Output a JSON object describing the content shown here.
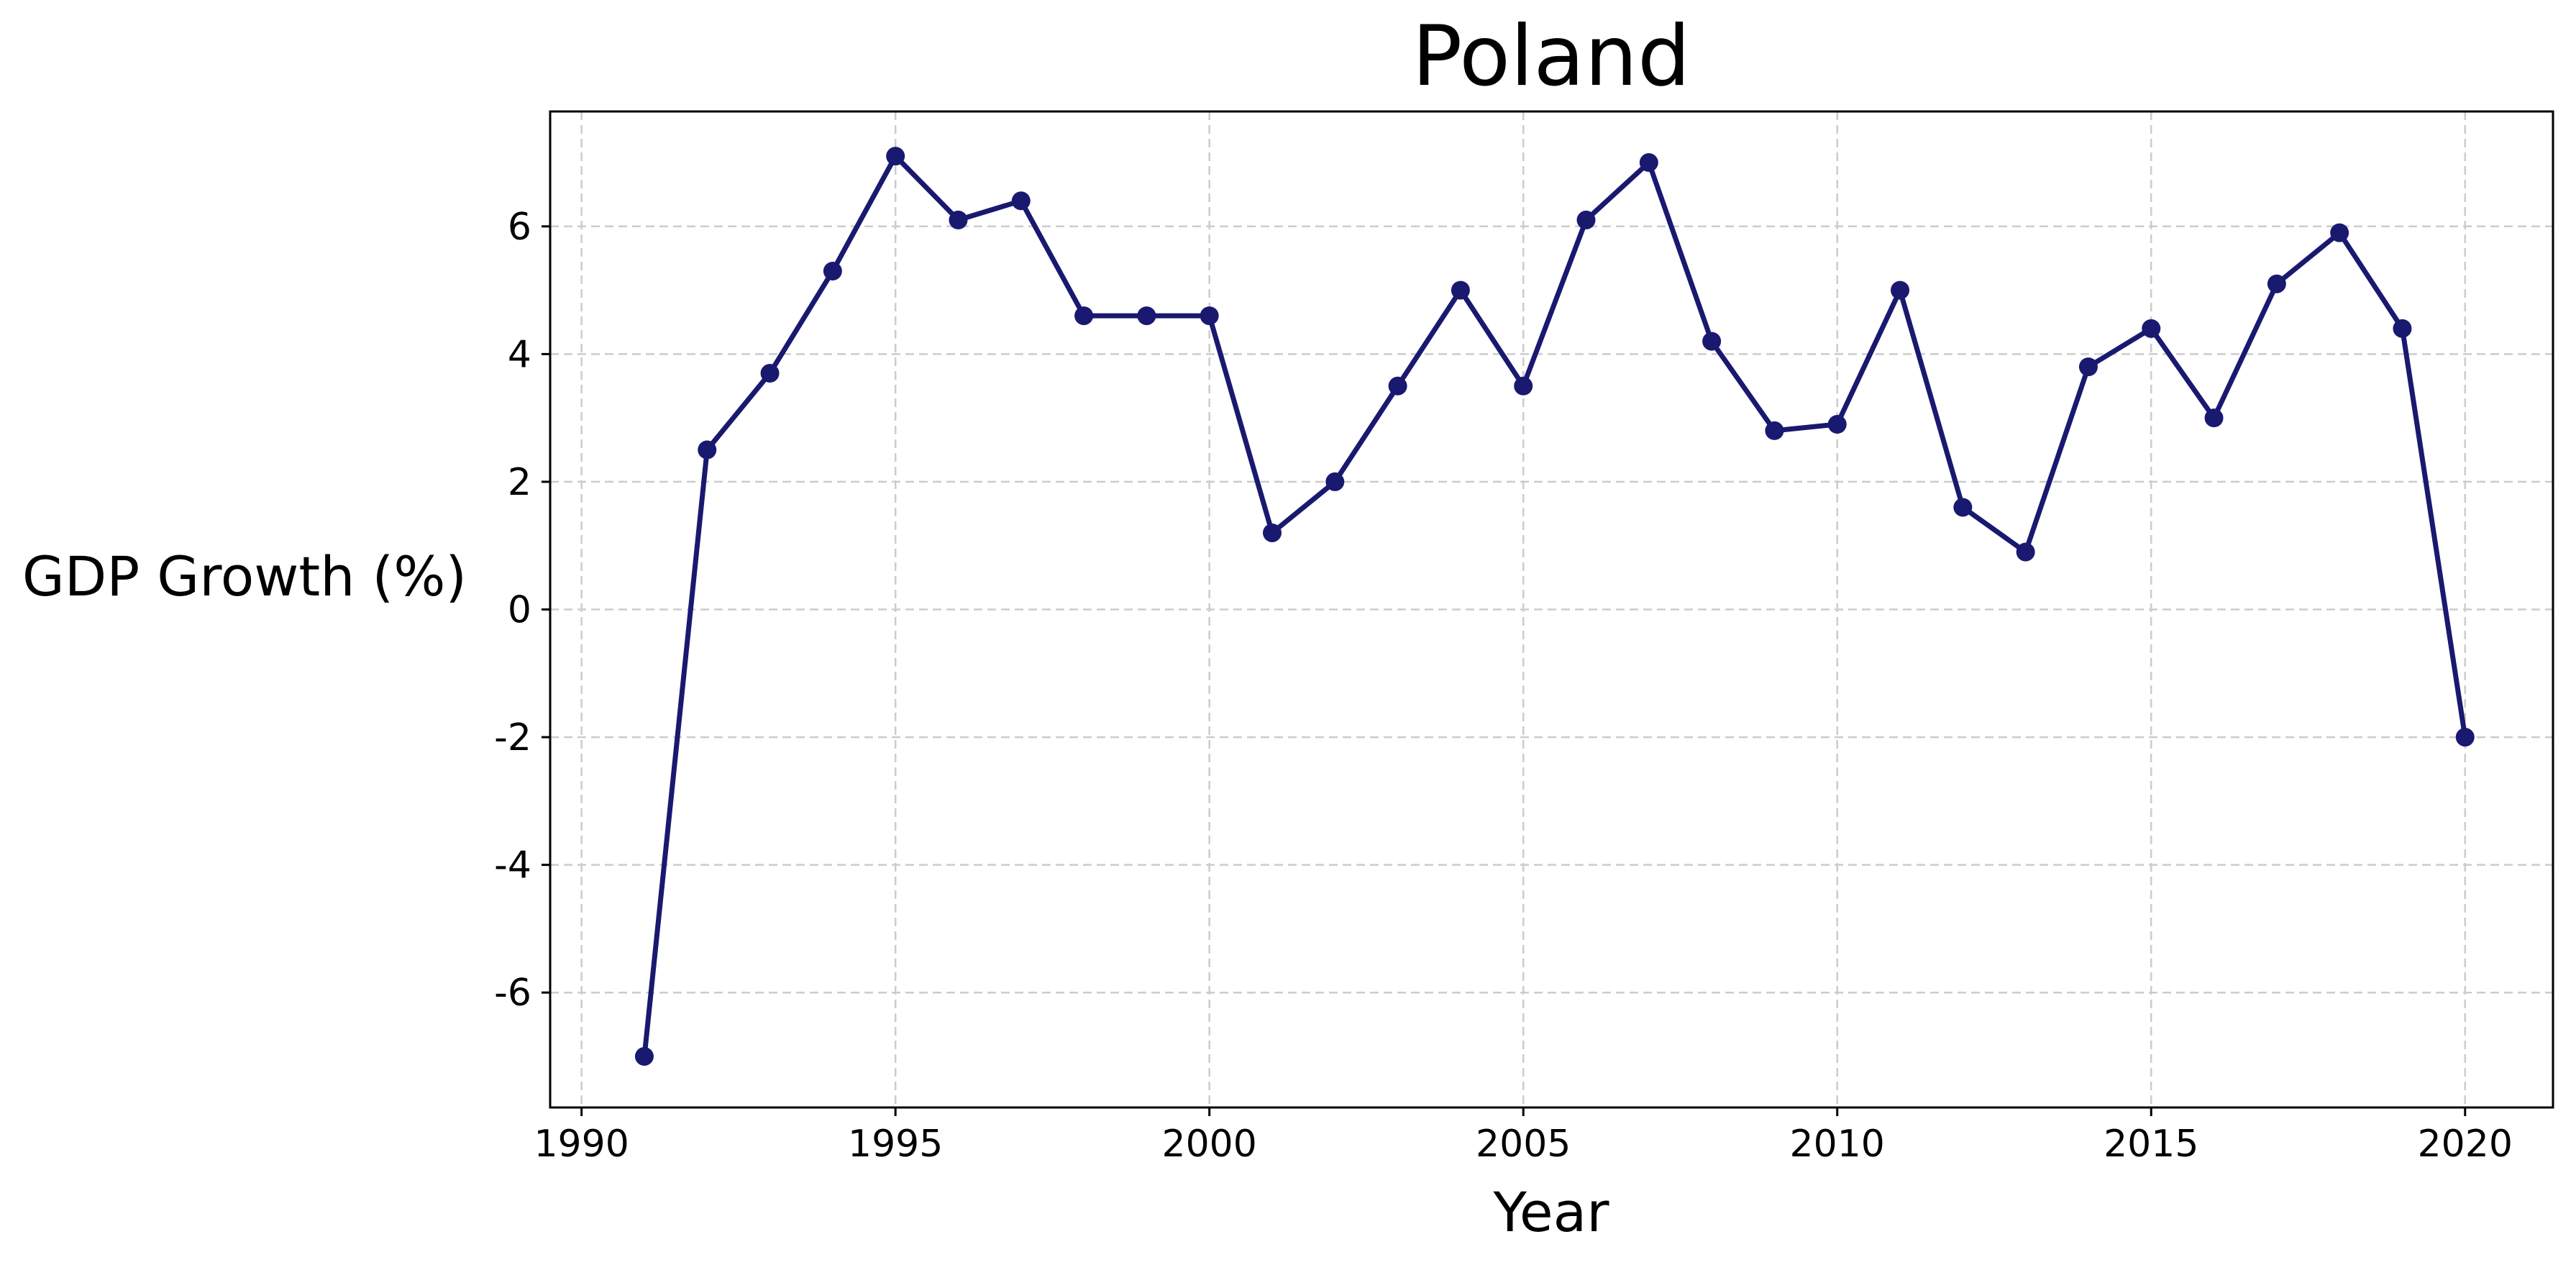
{
  "chart_data": {
    "type": "line",
    "title": "Poland",
    "xlabel": "Year",
    "ylabel": "GDP Growth (%)",
    "xlim": [
      1989.5,
      2021.4
    ],
    "ylim": [
      -7.8,
      7.8
    ],
    "xticks": [
      1990,
      1995,
      2000,
      2005,
      2010,
      2015,
      2020
    ],
    "yticks": [
      -6,
      -4,
      -2,
      0,
      2,
      4,
      6
    ],
    "ytick_labels": [
      "-6",
      "-4",
      "-2",
      "0",
      "2",
      "4",
      "6"
    ],
    "grid": true,
    "line_color": "#191970",
    "marker": "circle",
    "series": [
      {
        "x": [
          1991,
          1992,
          1993,
          1994,
          1995,
          1996,
          1997,
          1998,
          1999,
          2000,
          2001,
          2002,
          2003,
          2004,
          2005,
          2006,
          2007,
          2008,
          2009,
          2010,
          2011,
          2012,
          2013,
          2014,
          2015,
          2016,
          2017,
          2018,
          2019,
          2020
        ],
        "values": [
          -7.0,
          2.5,
          3.7,
          5.3,
          7.1,
          6.1,
          6.4,
          4.6,
          4.6,
          4.6,
          1.2,
          2.0,
          3.5,
          5.0,
          3.5,
          6.1,
          7.0,
          4.2,
          2.8,
          2.9,
          5.0,
          1.6,
          0.9,
          3.8,
          4.4,
          3.0,
          5.1,
          5.9,
          4.4,
          -2.0
        ]
      }
    ]
  }
}
